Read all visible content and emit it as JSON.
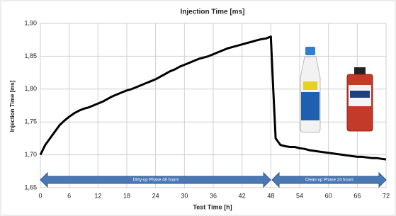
{
  "chart_data": {
    "type": "line",
    "title": "Injection Time [ms]",
    "x_label": "Test Time [h]",
    "y_label": "Injection Time [ms]",
    "annotations": [
      "Dirty-up Phase 48 hours",
      "Clean-up Phase 24 hours"
    ],
    "color": "#000000",
    "grid": true,
    "xlim": [
      0,
      72
    ],
    "xticks": [
      0,
      6,
      12,
      18,
      24,
      30,
      36,
      42,
      48,
      54,
      60,
      66,
      72
    ],
    "ylim": [
      1.65,
      1.9
    ],
    "yticks": [
      {
        "value": 1.65,
        "label": "1,65"
      },
      {
        "value": 1.7,
        "label": "1,70"
      },
      {
        "value": 1.75,
        "label": "1,75"
      },
      {
        "value": 1.8,
        "label": "1,80"
      },
      {
        "value": 1.85,
        "label": "1,85"
      },
      {
        "value": 1.9,
        "label": "1,90"
      }
    ],
    "x": [
      0,
      1,
      2,
      3,
      4,
      5,
      6,
      7,
      8,
      9,
      10,
      11,
      12,
      13,
      14,
      15,
      16,
      17,
      18,
      19,
      20,
      21,
      22,
      23,
      24,
      25,
      26,
      27,
      28,
      29,
      30,
      31,
      32,
      33,
      34,
      35,
      36,
      37,
      38,
      39,
      40,
      41,
      42,
      43,
      44,
      45,
      46,
      47,
      48,
      48.5,
      49,
      50,
      51,
      52,
      53,
      54,
      55,
      56,
      57,
      58,
      59,
      60,
      61,
      62,
      63,
      64,
      65,
      66,
      67,
      68,
      69,
      70,
      71,
      72
    ],
    "values": [
      1.7,
      1.715,
      1.725,
      1.735,
      1.745,
      1.752,
      1.758,
      1.763,
      1.767,
      1.77,
      1.772,
      1.775,
      1.778,
      1.781,
      1.785,
      1.789,
      1.792,
      1.795,
      1.798,
      1.8,
      1.803,
      1.806,
      1.809,
      1.812,
      1.815,
      1.819,
      1.823,
      1.827,
      1.83,
      1.834,
      1.837,
      1.84,
      1.843,
      1.846,
      1.848,
      1.85,
      1.853,
      1.856,
      1.859,
      1.862,
      1.864,
      1.866,
      1.868,
      1.87,
      1.872,
      1.874,
      1.876,
      1.877,
      1.88,
      1.8,
      1.725,
      1.715,
      1.713,
      1.712,
      1.712,
      1.71,
      1.709,
      1.707,
      1.706,
      1.705,
      1.704,
      1.703,
      1.702,
      1.701,
      1.7,
      1.699,
      1.698,
      1.697,
      1.697,
      1.696,
      1.695,
      1.695,
      1.694,
      1.693
    ]
  }
}
